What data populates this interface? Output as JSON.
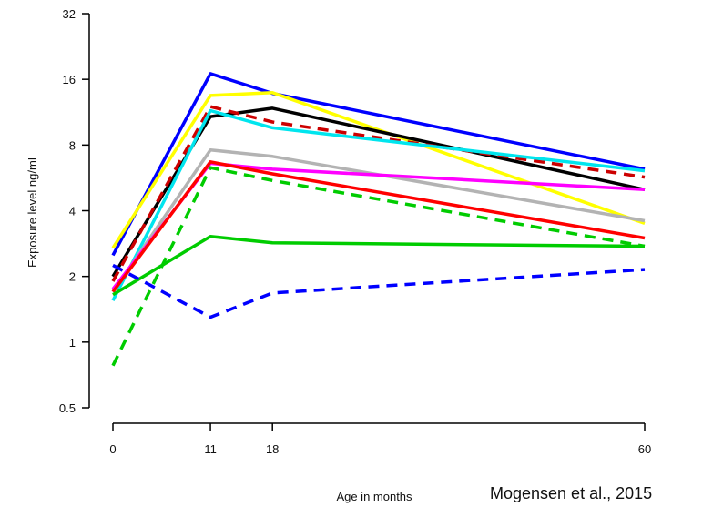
{
  "chart_data": {
    "type": "line",
    "title": "",
    "xlabel": "Age in months",
    "ylabel": "Exposure level ng/mL",
    "y_scale": "log2",
    "x_ticks": [
      "0",
      "11",
      "18",
      "60"
    ],
    "y_ticks": [
      "0.5",
      "1",
      "2",
      "4",
      "8",
      "16",
      "32"
    ],
    "x": [
      0,
      11,
      18,
      60
    ],
    "xlim": [
      0,
      60
    ],
    "ylim": [
      0.5,
      32
    ],
    "grid": false,
    "legend": "none",
    "series": [
      {
        "color": "#0000ff",
        "dash": false,
        "values": [
          2.5,
          17.0,
          13.8,
          6.2
        ]
      },
      {
        "color": "#ffff00",
        "dash": false,
        "values": [
          2.7,
          13.5,
          13.9,
          3.5
        ]
      },
      {
        "color": "#000000",
        "dash": false,
        "values": [
          2.0,
          10.8,
          11.8,
          5.0
        ]
      },
      {
        "color": "#cc0000",
        "dash": true,
        "values": [
          1.9,
          12.0,
          10.2,
          5.7
        ]
      },
      {
        "color": "#00e5ee",
        "dash": false,
        "values": [
          1.55,
          11.5,
          9.6,
          6.1
        ]
      },
      {
        "color": "#b3b3b3",
        "dash": false,
        "values": [
          1.7,
          7.6,
          7.1,
          3.6
        ]
      },
      {
        "color": "#ff00ff",
        "dash": false,
        "values": [
          1.75,
          6.6,
          6.2,
          5.0
        ]
      },
      {
        "color": "#ff0000",
        "dash": false,
        "values": [
          1.7,
          6.7,
          5.9,
          3.0
        ]
      },
      {
        "color": "#00cc00",
        "dash": true,
        "values": [
          0.78,
          6.3,
          5.5,
          2.75
        ]
      },
      {
        "color": "#00cc00",
        "dash": false,
        "values": [
          1.65,
          3.05,
          2.85,
          2.75
        ]
      },
      {
        "color": "#0000ff",
        "dash": true,
        "values": [
          2.25,
          1.3,
          1.68,
          2.15
        ]
      }
    ]
  },
  "citation": "Mogensen et al., 2015"
}
